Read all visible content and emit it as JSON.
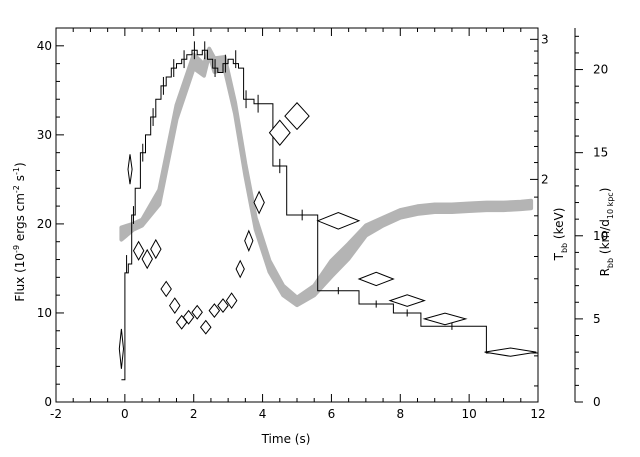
{
  "chart_data": {
    "type": "line",
    "xlabel": "Time (s)",
    "xlim": [
      -2,
      12
    ],
    "x_ticks": [
      -2,
      0,
      2,
      4,
      6,
      8,
      10,
      12
    ],
    "axes": {
      "flux": {
        "label_main": "Flux (10",
        "label_sup1": "-9",
        "label_mid": " ergs cm",
        "label_sup2": "-2",
        "label_mid2": " s",
        "label_sup3": "-1",
        "label_end": ")",
        "lim": [
          0,
          42
        ],
        "ticks": [
          0,
          10,
          20,
          30,
          40
        ]
      },
      "temperature": {
        "label_main": "T",
        "label_sub": "bb",
        "label_end": " (keV)",
        "log_scale": true,
        "lim": [
          1.05,
          3.1
        ],
        "ticks": [
          2,
          3
        ]
      },
      "radius": {
        "label_main": "R",
        "label_sub": "bb",
        "label_mid": " (km/d",
        "label_sub2": "10 kpc",
        "label_end": ")",
        "lim": [
          0,
          22.5
        ],
        "ticks": [
          0,
          5,
          10,
          15,
          20
        ]
      }
    },
    "series": [
      {
        "role": "flux_histogram",
        "axis": "flux",
        "color": "#000000",
        "edges": [
          -0.1,
          0.0,
          0.1,
          0.2,
          0.3,
          0.45,
          0.6,
          0.75,
          0.9,
          1.05,
          1.2,
          1.35,
          1.5,
          1.65,
          1.8,
          1.95,
          2.1,
          2.25,
          2.4,
          2.55,
          2.7,
          2.85,
          3.0,
          3.15,
          3.3,
          3.45,
          3.6,
          3.75,
          4.0,
          4.3,
          4.7,
          5.6,
          6.8,
          7.8,
          8.6,
          10.5,
          12.0
        ],
        "values": [
          2.5,
          14.5,
          15.5,
          21.0,
          24.0,
          28.0,
          30.0,
          32.0,
          34.0,
          35.5,
          36.5,
          37.5,
          38.0,
          38.5,
          39.0,
          39.5,
          39.0,
          39.5,
          38.5,
          37.5,
          37.0,
          38.0,
          38.5,
          38.0,
          37.5,
          34.0,
          34.0,
          33.5,
          33.5,
          26.5,
          21.0,
          12.5,
          11.0,
          10.0,
          8.5,
          5.5
        ]
      },
      {
        "role": "temperature_band",
        "axis": "temperature",
        "color": "#b4b4b4",
        "x": [
          -0.1,
          0.25,
          0.5,
          1.0,
          1.5,
          2.0,
          2.3,
          2.45,
          2.6,
          2.9,
          3.2,
          3.5,
          3.8,
          4.2,
          4.6,
          5.0,
          5.5,
          6.0,
          6.5,
          7.0,
          7.5,
          8.0,
          8.5,
          9.0,
          9.5,
          10.0,
          10.5,
          11.0,
          11.5,
          11.8
        ],
        "upper": [
          1.74,
          1.76,
          1.78,
          1.94,
          2.48,
          2.87,
          2.79,
          2.92,
          2.84,
          2.85,
          2.5,
          2.09,
          1.79,
          1.58,
          1.47,
          1.42,
          1.47,
          1.58,
          1.66,
          1.75,
          1.79,
          1.83,
          1.85,
          1.86,
          1.86,
          1.865,
          1.87,
          1.87,
          1.875,
          1.88
        ],
        "lower": [
          1.68,
          1.73,
          1.75,
          1.86,
          2.38,
          2.76,
          2.7,
          2.87,
          2.73,
          2.75,
          2.42,
          2.02,
          1.73,
          1.53,
          1.43,
          1.39,
          1.43,
          1.51,
          1.59,
          1.7,
          1.75,
          1.79,
          1.81,
          1.82,
          1.82,
          1.825,
          1.83,
          1.83,
          1.835,
          1.84
        ]
      },
      {
        "role": "radius_points",
        "axis": "radius",
        "color": "#000000",
        "points": [
          {
            "x": -0.1,
            "y": 3.2,
            "xerr": 0.06,
            "yerr": 1.2
          },
          {
            "x": 0.15,
            "y": 14.0,
            "xerr": 0.06,
            "yerr": 0.9
          },
          {
            "x": 0.4,
            "y": 9.1,
            "xerr": 0.15,
            "yerr": 0.55
          },
          {
            "x": 0.65,
            "y": 8.6,
            "xerr": 0.15,
            "yerr": 0.55
          },
          {
            "x": 0.9,
            "y": 9.2,
            "xerr": 0.15,
            "yerr": 0.55
          },
          {
            "x": 1.2,
            "y": 6.8,
            "xerr": 0.15,
            "yerr": 0.45
          },
          {
            "x": 1.45,
            "y": 5.8,
            "xerr": 0.15,
            "yerr": 0.45
          },
          {
            "x": 1.65,
            "y": 4.8,
            "xerr": 0.15,
            "yerr": 0.4
          },
          {
            "x": 1.85,
            "y": 5.1,
            "xerr": 0.15,
            "yerr": 0.4
          },
          {
            "x": 2.1,
            "y": 5.4,
            "xerr": 0.15,
            "yerr": 0.4
          },
          {
            "x": 2.35,
            "y": 4.5,
            "xerr": 0.15,
            "yerr": 0.4
          },
          {
            "x": 2.6,
            "y": 5.5,
            "xerr": 0.15,
            "yerr": 0.4
          },
          {
            "x": 2.85,
            "y": 5.8,
            "xerr": 0.15,
            "yerr": 0.4
          },
          {
            "x": 3.1,
            "y": 6.1,
            "xerr": 0.15,
            "yerr": 0.45
          },
          {
            "x": 3.35,
            "y": 8.0,
            "xerr": 0.12,
            "yerr": 0.5
          },
          {
            "x": 3.6,
            "y": 9.7,
            "xerr": 0.12,
            "yerr": 0.6
          },
          {
            "x": 3.9,
            "y": 12.0,
            "xerr": 0.15,
            "yerr": 0.65
          },
          {
            "x": 4.5,
            "y": 16.2,
            "xerr": 0.3,
            "yerr": 0.75
          },
          {
            "x": 5.0,
            "y": 17.2,
            "xerr": 0.35,
            "yerr": 0.8
          },
          {
            "x": 6.2,
            "y": 10.9,
            "xerr": 0.6,
            "yerr": 0.5
          },
          {
            "x": 7.3,
            "y": 7.4,
            "xerr": 0.5,
            "yerr": 0.4
          },
          {
            "x": 8.2,
            "y": 6.1,
            "xerr": 0.5,
            "yerr": 0.35
          },
          {
            "x": 9.3,
            "y": 5.0,
            "xerr": 0.6,
            "yerr": 0.35
          },
          {
            "x": 11.2,
            "y": 3.0,
            "xerr": 0.75,
            "yerr": 0.25
          }
        ]
      }
    ],
    "flux_error_bars": [
      {
        "x": 0.05,
        "y": 15.5,
        "err": 1.0
      },
      {
        "x": 0.25,
        "y": 21.0,
        "err": 1.0
      },
      {
        "x": 0.52,
        "y": 28.0,
        "err": 1.0
      },
      {
        "x": 0.82,
        "y": 32.0,
        "err": 1.0
      },
      {
        "x": 1.12,
        "y": 35.5,
        "err": 1.0
      },
      {
        "x": 1.42,
        "y": 37.5,
        "err": 1.0
      },
      {
        "x": 1.72,
        "y": 38.5,
        "err": 1.0
      },
      {
        "x": 2.02,
        "y": 39.5,
        "err": 1.0
      },
      {
        "x": 2.32,
        "y": 39.5,
        "err": 1.0
      },
      {
        "x": 2.62,
        "y": 37.5,
        "err": 1.0
      },
      {
        "x": 2.92,
        "y": 38.0,
        "err": 1.0
      },
      {
        "x": 3.22,
        "y": 38.5,
        "err": 1.0
      },
      {
        "x": 3.52,
        "y": 34.0,
        "err": 1.0
      },
      {
        "x": 3.87,
        "y": 33.5,
        "err": 1.0
      },
      {
        "x": 4.5,
        "y": 26.5,
        "err": 0.8
      },
      {
        "x": 5.15,
        "y": 21.0,
        "err": 0.6
      },
      {
        "x": 6.2,
        "y": 12.5,
        "err": 0.4
      },
      {
        "x": 7.3,
        "y": 11.0,
        "err": 0.4
      },
      {
        "x": 8.2,
        "y": 10.0,
        "err": 0.4
      },
      {
        "x": 9.5,
        "y": 8.5,
        "err": 0.4
      },
      {
        "x": 11.25,
        "y": 5.5,
        "err": 0.3
      }
    ]
  }
}
